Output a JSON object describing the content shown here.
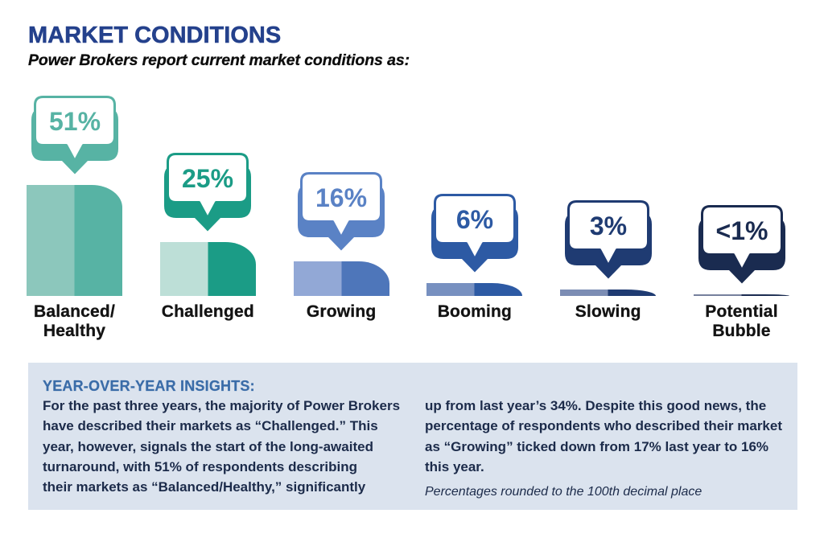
{
  "title": "MARKET CONDITIONS",
  "subtitle": "Power Brokers report current market conditions as:",
  "chart_data": {
    "type": "bar",
    "title": "MARKET CONDITIONS",
    "subtitle": "Power Brokers report current market conditions as:",
    "categories": [
      "Balanced/\nHealthy",
      "Challenged",
      "Growing",
      "Booming",
      "Slowing",
      "Potential\nBubble"
    ],
    "values": [
      51,
      25,
      16,
      6,
      3,
      0.9
    ],
    "value_labels": [
      "51%",
      "25%",
      "16%",
      "6%",
      "3%",
      "<1%"
    ],
    "colors": [
      {
        "accent": "#57B3A4",
        "bar_light": "#8CC7BC",
        "bar_dark": "#57B3A4"
      },
      {
        "accent": "#1B9C86",
        "bar_light": "#BDDFD7",
        "bar_dark": "#1B9C86"
      },
      {
        "accent": "#5A82C5",
        "bar_light": "#92A8D6",
        "bar_dark": "#4E76BA"
      },
      {
        "accent": "#2D5AA4",
        "bar_light": "#7790C0",
        "bar_dark": "#2D5AA4"
      },
      {
        "accent": "#1F3B72",
        "bar_light": "#7C8DB4",
        "bar_dark": "#1F3B72"
      },
      {
        "accent": "#1A2B50",
        "bar_light": "#76809D",
        "bar_dark": "#1A2B50"
      }
    ]
  },
  "ui_colors": {
    "title": "#24418C",
    "subtitle": "#0d0d0d",
    "category_label": "#131313",
    "insights_panel_bg": "#DBE3EE",
    "insights_heading": "#3A6CA8",
    "insights_body": "#1C2B4A",
    "page_bg": "#ffffff"
  },
  "insights": {
    "heading": "YEAR-OVER-YEAR INSIGHTS:",
    "column1": "For the past three years, the majority of Power Brokers\nhave described their markets as “Challenged.” This\nyear, however, signals the start of the long-awaited\nturnaround, with 51% of respondents describing\ntheir markets as “Balanced/Healthy,” significantly",
    "column2": "up from last year’s 34%. Despite this good news, the\npercentage of respondents who described their market\nas “Growing” ticked down from 17% last year to 16%\nthis year.",
    "footnote": "Percentages rounded to the 100th decimal place"
  }
}
